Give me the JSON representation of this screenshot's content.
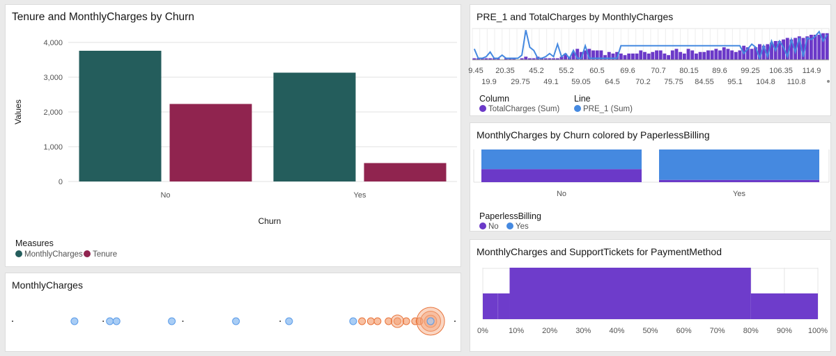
{
  "colors": {
    "teal": "#245d5c",
    "maroon": "#90244f",
    "purple": "#6b39c8",
    "blue": "#4589e0",
    "light_blue": "#a9cdf5",
    "orange": "#e8743b",
    "grid": "#e0e0e0"
  },
  "panel1": {
    "title": "Tenure and MonthlyCharges by Churn",
    "legend_title": "Measures",
    "legend_items": [
      "MonthlyCharges",
      "Tenure"
    ]
  },
  "panel2": {
    "title": "PRE_1 and TotalCharges by MonthlyCharges",
    "legend_column_title": "Column",
    "legend_column_item": "TotalCharges (Sum)",
    "legend_line_title": "Line",
    "legend_line_item": "PRE_1 (Sum)"
  },
  "panel3": {
    "title": "MonthlyCharges by Churn colored by PaperlessBilling",
    "legend_title": "PaperlessBilling",
    "legend_items": [
      "No",
      "Yes"
    ]
  },
  "panel4": {
    "title": "MonthlyCharges"
  },
  "panel5": {
    "title": "MonthlyCharges and SupportTickets for PaymentMethod"
  },
  "chart_data": [
    {
      "type": "bar",
      "title": "Tenure and MonthlyCharges by Churn",
      "xlabel": "Churn",
      "ylabel": "Values",
      "categories": [
        "No",
        "Yes"
      ],
      "ylim": [
        0,
        4000
      ],
      "yticks": [
        "0",
        "1,000",
        "2,000",
        "3,000",
        "4,000"
      ],
      "series": [
        {
          "name": "MonthlyCharges",
          "values": [
            3760,
            3130
          ]
        },
        {
          "name": "Tenure",
          "values": [
            2230,
            530
          ]
        }
      ],
      "legend": "bottom-left"
    },
    {
      "type": "bar",
      "title": "PRE_1 and TotalCharges by MonthlyCharges",
      "x_ticks_row1": [
        "9.45",
        "20.35",
        "45.2",
        "55.2",
        "60.5",
        "69.6",
        "70.7",
        "80.15",
        "89.6",
        "99.25",
        "106.35",
        "114.9"
      ],
      "x_ticks_row2": [
        "19.9",
        "29.75",
        "49.1",
        "59.05",
        "64.5",
        "70.2",
        "75.75",
        "84.55",
        "95.1",
        "104.8",
        "110.8"
      ],
      "series": [
        {
          "name": "TotalCharges (Sum)",
          "kind": "column",
          "values": [
            1,
            1,
            1,
            1,
            1,
            1,
            1,
            0,
            1,
            1,
            1,
            0,
            1,
            2,
            1,
            1,
            2,
            1,
            1,
            1,
            1,
            1,
            2,
            4,
            2,
            5,
            7,
            5,
            6,
            7,
            6,
            6,
            6,
            3,
            5,
            4,
            5,
            4,
            3,
            4,
            4,
            4,
            6,
            5,
            4,
            5,
            6,
            6,
            4,
            3,
            6,
            7,
            5,
            4,
            7,
            6,
            4,
            5,
            5,
            6,
            6,
            7,
            6,
            8,
            7,
            6,
            5,
            6,
            9,
            8,
            7,
            8,
            10,
            9,
            10,
            11,
            12,
            12,
            13,
            14,
            13,
            14,
            15,
            14,
            15,
            16,
            16,
            16,
            17,
            17
          ]
        },
        {
          "name": "PRE_1 (Sum)",
          "kind": "line",
          "values": [
            7,
            1,
            1,
            2,
            5,
            1,
            1,
            3,
            1,
            1,
            1,
            1,
            3,
            19,
            8,
            6,
            1,
            1,
            2,
            4,
            2,
            10,
            2,
            4,
            1,
            6,
            1,
            1,
            9,
            1,
            1,
            1,
            1,
            1,
            1,
            1,
            1,
            9,
            9,
            9,
            9,
            9,
            9,
            9,
            9,
            9,
            9,
            9,
            9,
            9,
            9,
            9,
            9,
            9,
            9,
            9,
            9,
            9,
            9,
            9,
            9,
            9,
            9,
            9,
            9,
            9,
            9,
            9,
            4,
            7,
            10,
            8,
            1,
            9,
            2,
            12,
            6,
            12,
            8,
            2,
            13,
            5,
            14,
            2,
            14,
            13,
            15,
            18,
            12,
            16
          ]
        }
      ],
      "legend": "bottom"
    },
    {
      "type": "bar",
      "title": "MonthlyCharges by Churn colored by PaperlessBilling",
      "categories": [
        "No",
        "Yes"
      ],
      "stacked": true,
      "series": [
        {
          "name": "No",
          "values": [
            0.4,
            0.07
          ]
        },
        {
          "name": "Yes",
          "values": [
            0.6,
            0.93
          ]
        }
      ],
      "legend": "bottom"
    },
    {
      "type": "scatter",
      "title": "MonthlyCharges",
      "points_blue": [
        0.14,
        0.22,
        0.235,
        0.36,
        0.505,
        0.625,
        0.77
      ],
      "points_orange": [
        0.79,
        0.81,
        0.825,
        0.85,
        0.87,
        0.89,
        0.91,
        0.92,
        0.945
      ],
      "big_orange_sizes": [
        0.2,
        0.6,
        1.0
      ]
    },
    {
      "type": "area",
      "title": "MonthlyCharges and SupportTickets for PaymentMethod",
      "x_ticks": [
        "0%",
        "10%",
        "20%",
        "30%",
        "40%",
        "50%",
        "60%",
        "70%",
        "80%",
        "90%",
        "100%"
      ],
      "segments": [
        {
          "from": 0,
          "to": 0.08,
          "level": 0.5
        },
        {
          "from": 0.08,
          "to": 0.8,
          "level": 1.0
        },
        {
          "from": 0.8,
          "to": 1.0,
          "level": 0.5
        }
      ]
    }
  ]
}
